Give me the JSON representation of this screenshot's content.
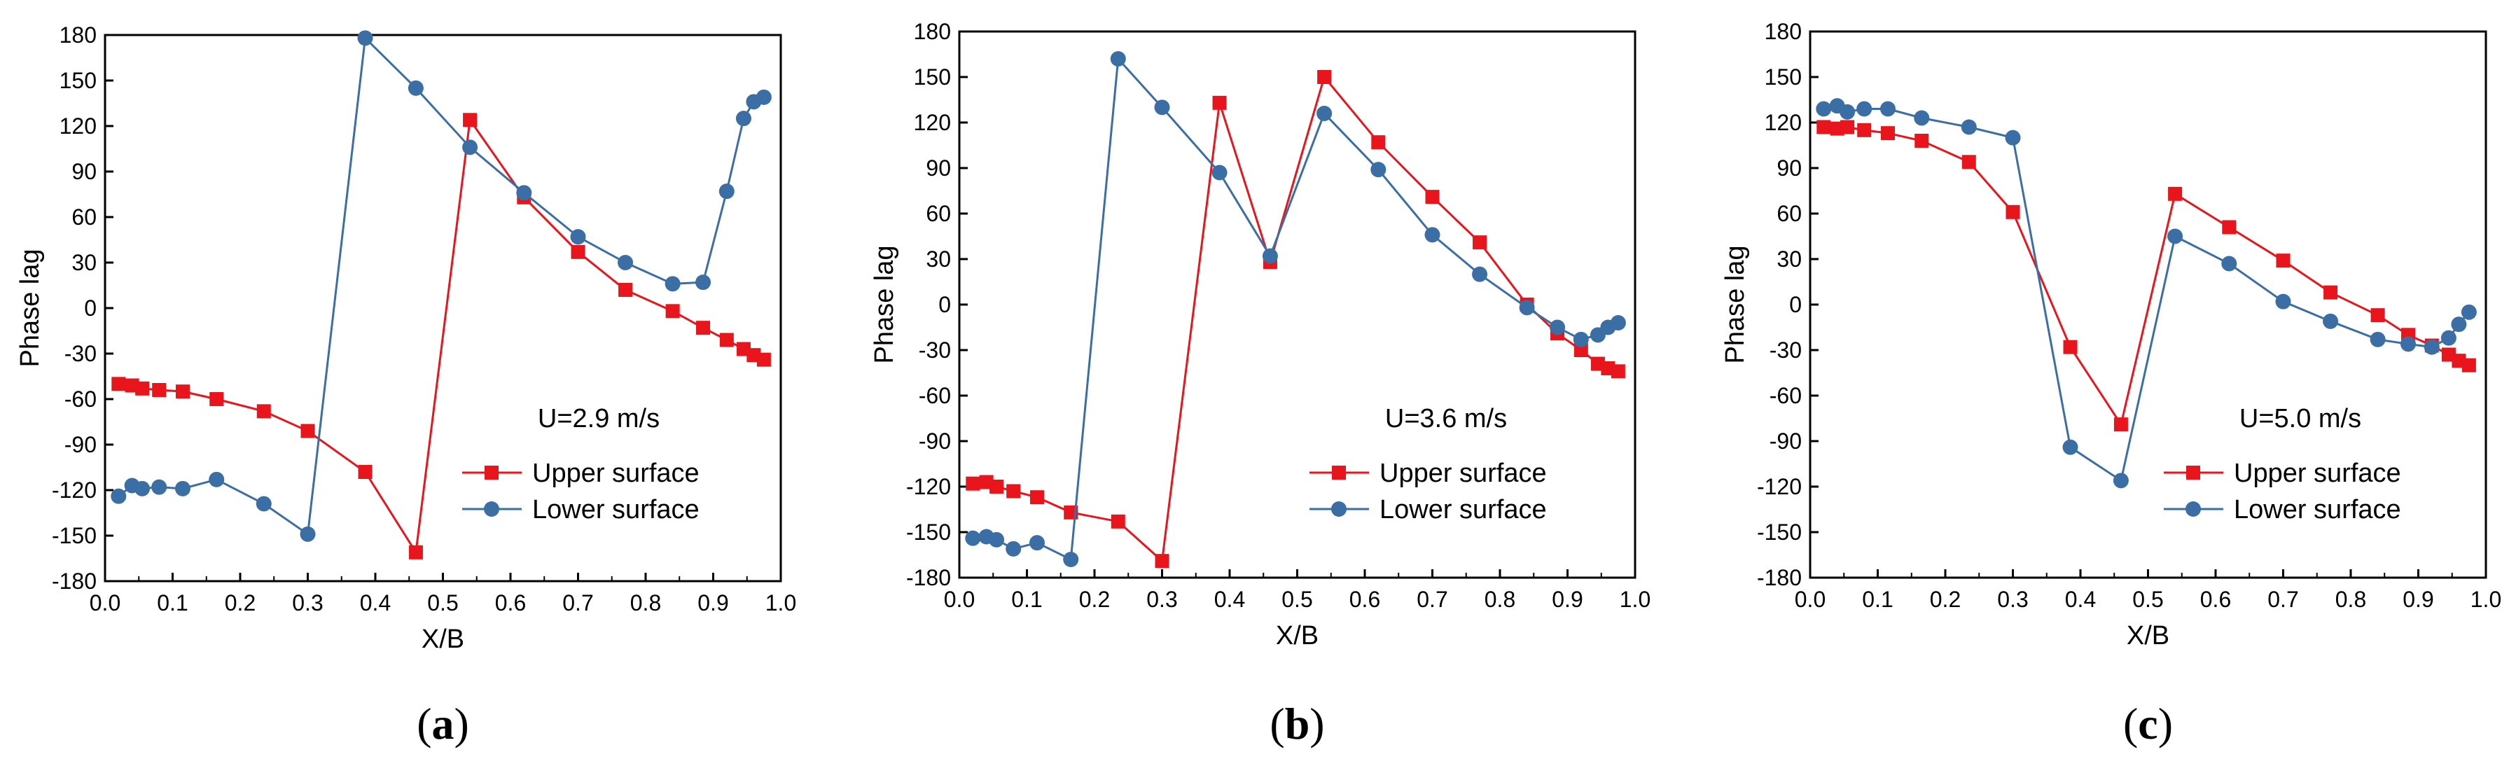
{
  "colors": {
    "upper": "#e8161c",
    "lower": "#3a6ea5",
    "axis": "#000000"
  },
  "chart_data": [
    {
      "type": "line",
      "panel_label": "a",
      "xlabel": "X/B",
      "ylabel": "Phase lag",
      "xlim": [
        0.0,
        1.0
      ],
      "ylim": [
        -180,
        180
      ],
      "xticks": [
        "0.0",
        "0.1",
        "0.2",
        "0.3",
        "0.4",
        "0.5",
        "0.6",
        "0.7",
        "0.8",
        "0.9",
        "1.0"
      ],
      "yticks": [
        "180",
        "150",
        "120",
        "90",
        "60",
        "30",
        "0",
        "-30",
        "-60",
        "-90",
        "-120",
        "-150",
        "-180"
      ],
      "legend_title": "U=2.9 m/s",
      "series": [
        {
          "name": "Upper surface",
          "marker": "square",
          "x": [
            0.02,
            0.04,
            0.055,
            0.08,
            0.115,
            0.165,
            0.235,
            0.3,
            0.385,
            0.46,
            0.54,
            0.62,
            0.7,
            0.77,
            0.84,
            0.885,
            0.92,
            0.945,
            0.96,
            0.975
          ],
          "y": [
            -50,
            -51,
            -53,
            -54,
            -55,
            -60,
            -68,
            -81,
            -108,
            -161,
            124,
            73,
            37,
            12,
            -2,
            -13,
            -21,
            -27,
            -31,
            -34
          ]
        },
        {
          "name": "Lower surface",
          "marker": "circle",
          "x": [
            0.02,
            0.04,
            0.055,
            0.08,
            0.115,
            0.165,
            0.235,
            0.3,
            0.385,
            0.46,
            0.54,
            0.62,
            0.7,
            0.77,
            0.84,
            0.885,
            0.92,
            0.945,
            0.96,
            0.975
          ],
          "y": [
            -124,
            -117,
            -119,
            -118,
            -119,
            -113,
            -129,
            -149,
            178,
            145,
            106,
            76,
            47,
            30,
            16,
            17,
            77,
            125,
            136,
            139
          ]
        }
      ]
    },
    {
      "type": "line",
      "panel_label": "b",
      "xlabel": "X/B",
      "ylabel": "Phase lag",
      "xlim": [
        0.0,
        1.0
      ],
      "ylim": [
        -180,
        180
      ],
      "xticks": [
        "0.0",
        "0.1",
        "0.2",
        "0.3",
        "0.4",
        "0.5",
        "0.6",
        "0.7",
        "0.8",
        "0.9",
        "1.0"
      ],
      "yticks": [
        "180",
        "150",
        "120",
        "90",
        "60",
        "30",
        "0",
        "-30",
        "-60",
        "-90",
        "-120",
        "-150",
        "-180"
      ],
      "legend_title": "U=3.6 m/s",
      "series": [
        {
          "name": "Upper surface",
          "marker": "square",
          "x": [
            0.02,
            0.04,
            0.055,
            0.08,
            0.115,
            0.165,
            0.235,
            0.3,
            0.385,
            0.46,
            0.54,
            0.62,
            0.7,
            0.77,
            0.84,
            0.885,
            0.92,
            0.945,
            0.96,
            0.975
          ],
          "y": [
            -118,
            -117,
            -120,
            -123,
            -127,
            -137,
            -143,
            -169,
            133,
            28,
            150,
            107,
            71,
            41,
            0,
            -19,
            -30,
            -39,
            -42,
            -44
          ]
        },
        {
          "name": "Lower surface",
          "marker": "circle",
          "x": [
            0.02,
            0.04,
            0.055,
            0.08,
            0.115,
            0.165,
            0.235,
            0.3,
            0.385,
            0.46,
            0.54,
            0.62,
            0.7,
            0.77,
            0.84,
            0.885,
            0.92,
            0.945,
            0.96,
            0.975
          ],
          "y": [
            -154,
            -153,
            -155,
            -161,
            -157,
            -168,
            162,
            130,
            87,
            32,
            126,
            89,
            46,
            20,
            -2,
            -15,
            -23,
            -20,
            -15,
            -12
          ]
        }
      ]
    },
    {
      "type": "line",
      "panel_label": "c",
      "xlabel": "X/B",
      "ylabel": "Phase lag",
      "xlim": [
        0.0,
        1.0
      ],
      "ylim": [
        -180,
        180
      ],
      "xticks": [
        "0.0",
        "0.1",
        "0.2",
        "0.3",
        "0.4",
        "0.5",
        "0.6",
        "0.7",
        "0.8",
        "0.9",
        "1.0"
      ],
      "yticks": [
        "180",
        "150",
        "120",
        "90",
        "60",
        "30",
        "0",
        "-30",
        "-60",
        "-90",
        "-120",
        "-150",
        "-180"
      ],
      "legend_title": "U=5.0 m/s",
      "series": [
        {
          "name": "Upper surface",
          "marker": "square",
          "x": [
            0.02,
            0.04,
            0.055,
            0.08,
            0.115,
            0.165,
            0.235,
            0.3,
            0.385,
            0.46,
            0.54,
            0.62,
            0.7,
            0.77,
            0.84,
            0.885,
            0.92,
            0.945,
            0.96,
            0.975
          ],
          "y": [
            117,
            116,
            117,
            115,
            113,
            108,
            94,
            61,
            -28,
            -79,
            73,
            51,
            29,
            8,
            -7,
            -20,
            -27,
            -33,
            -37,
            -40
          ]
        },
        {
          "name": "Lower surface",
          "marker": "circle",
          "x": [
            0.02,
            0.04,
            0.055,
            0.08,
            0.115,
            0.165,
            0.235,
            0.3,
            0.385,
            0.46,
            0.54,
            0.62,
            0.7,
            0.77,
            0.84,
            0.885,
            0.92,
            0.945,
            0.96,
            0.975
          ],
          "y": [
            129,
            131,
            127,
            129,
            129,
            123,
            117,
            110,
            -94,
            -116,
            45,
            27,
            2,
            -11,
            -23,
            -26,
            -28,
            -22,
            -13,
            -5
          ]
        }
      ]
    }
  ]
}
